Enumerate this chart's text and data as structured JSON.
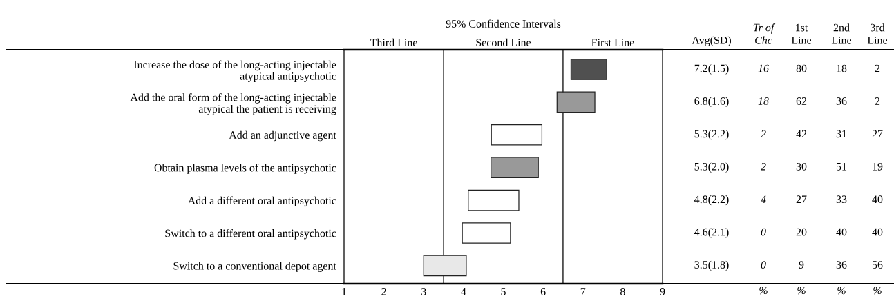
{
  "chart_data": {
    "type": "bar",
    "orientation": "horizontal",
    "title": "95% Confidence Intervals",
    "categories": [
      "Increase the dose of the long-acting injectable\natypical antipsychotic",
      "Add the oral form of the long-acting injectable\natypical the patient is receiving",
      "Add an adjunctive agent",
      "Obtain plasma levels of the antipsychotic",
      "Add a different oral antipsychotic",
      "Switch to a different oral antipsychotic",
      "Switch to a conventional depot agent"
    ],
    "base": [
      6.7,
      6.35,
      4.7,
      4.69,
      4.12,
      3.97,
      3.0
    ],
    "values": [
      0.9,
      0.95,
      1.27,
      1.19,
      1.27,
      1.21,
      1.07
    ],
    "colors": [
      "#505050",
      "#999999",
      "#ffffff",
      "#999999",
      "#ffffff",
      "#ffffff",
      "#e8e8e8"
    ],
    "xlim": [
      1,
      9
    ],
    "xticks": [
      1,
      2,
      3,
      4,
      5,
      6,
      7,
      8,
      9
    ],
    "grid": false,
    "ref_lines": [
      {
        "axis": "x",
        "value": 3.5,
        "color": "#000000"
      },
      {
        "axis": "x",
        "value": 6.5,
        "color": "#000000"
      }
    ],
    "annotations": [
      "Third Line",
      "Second Line",
      "First Line",
      "Avg(SD)",
      "Tr of\nChc",
      "1st\nLine",
      "2nd\nLine",
      "3rd\nLine",
      "7.2(1.5)",
      "16",
      "80",
      "18",
      "2",
      "6.8(1.6)",
      "18",
      "62",
      "36",
      "2",
      "5.3(2.2)",
      "2",
      "42",
      "31",
      "27",
      "5.3(2.0)",
      "2",
      "30",
      "51",
      "19",
      "4.8(2.2)",
      "4",
      "27",
      "33",
      "40",
      "4.6(2.1)",
      "0",
      "20",
      "40",
      "40",
      "3.5(1.8)",
      "0",
      "9",
      "36",
      "56",
      "%",
      "%",
      "%",
      "%"
    ]
  }
}
